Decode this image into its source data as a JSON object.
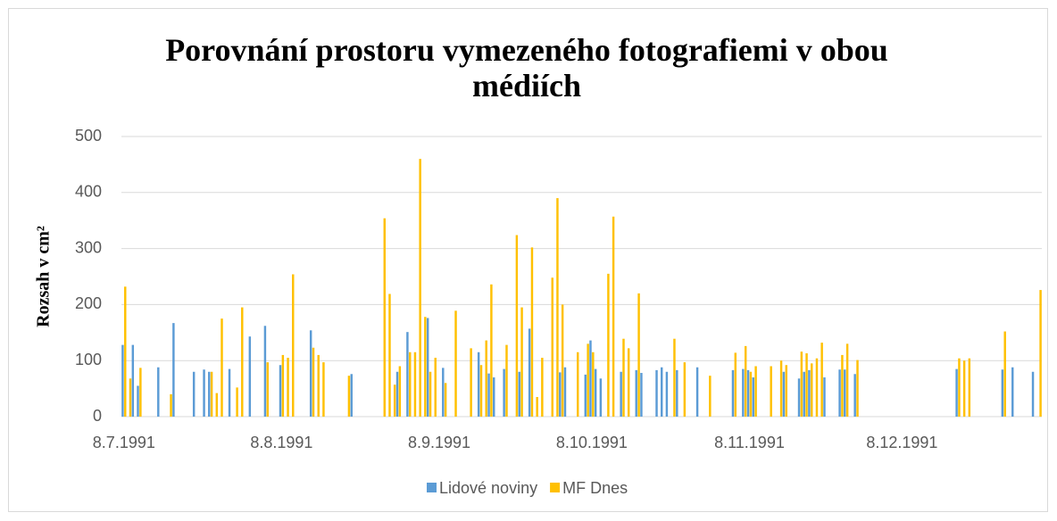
{
  "chart_data": {
    "type": "bar",
    "title": "Porovnání prostoru vymezeného fotografiemi v obou médiích",
    "y_label": "Rozsah v cm²",
    "ylim": [
      0,
      500
    ],
    "yticks": [
      0,
      100,
      200,
      300,
      400,
      500
    ],
    "xlim": [
      "1991-07-08",
      "1992-01-04"
    ],
    "xticks": [
      {
        "value": "1991-07-08",
        "label": "8.7.1991"
      },
      {
        "value": "1991-08-08",
        "label": "8.8.1991"
      },
      {
        "value": "1991-09-08",
        "label": "8.9.1991"
      },
      {
        "value": "1991-10-08",
        "label": "8.10.1991"
      },
      {
        "value": "1991-11-08",
        "label": "8.11.1991"
      },
      {
        "value": "1991-12-08",
        "label": "8.12.1991"
      }
    ],
    "grid": true,
    "legend": "bottom",
    "x": [
      "1991-07-08",
      "1991-07-09",
      "1991-07-10",
      "1991-07-11",
      "1991-07-15",
      "1991-07-17",
      "1991-07-18",
      "1991-07-22",
      "1991-07-24",
      "1991-07-25",
      "1991-07-26",
      "1991-07-27",
      "1991-07-29",
      "1991-07-30",
      "1991-07-31",
      "1991-08-02",
      "1991-08-05",
      "1991-08-08",
      "1991-08-09",
      "1991-08-10",
      "1991-08-14",
      "1991-08-15",
      "1991-08-16",
      "1991-08-21",
      "1991-08-22",
      "1991-08-28",
      "1991-08-29",
      "1991-08-30",
      "1991-08-31",
      "1991-09-02",
      "1991-09-03",
      "1991-09-04",
      "1991-09-05",
      "1991-09-06",
      "1991-09-07",
      "1991-09-09",
      "1991-09-11",
      "1991-09-14",
      "1991-09-16",
      "1991-09-17",
      "1991-09-18",
      "1991-09-19",
      "1991-09-21",
      "1991-09-23",
      "1991-09-24",
      "1991-09-26",
      "1991-09-27",
      "1991-09-28",
      "1991-09-30",
      "1991-10-01",
      "1991-10-02",
      "1991-10-03",
      "1991-10-05",
      "1991-10-07",
      "1991-10-08",
      "1991-10-09",
      "1991-10-10",
      "1991-10-11",
      "1991-10-12",
      "1991-10-14",
      "1991-10-15",
      "1991-10-17",
      "1991-10-18",
      "1991-10-21",
      "1991-10-22",
      "1991-10-23",
      "1991-10-24",
      "1991-10-25",
      "1991-10-26",
      "1991-10-29",
      "1991-10-31",
      "1991-11-05",
      "1991-11-07",
      "1991-11-08",
      "1991-11-09",
      "1991-11-12",
      "1991-11-14",
      "1991-11-15",
      "1991-11-18",
      "1991-11-19",
      "1991-11-20",
      "1991-11-21",
      "1991-11-22",
      "1991-11-23",
      "1991-11-26",
      "1991-11-27",
      "1991-11-29",
      "1991-12-19",
      "1991-12-20",
      "1991-12-21",
      "1991-12-28",
      "1991-12-30",
      "1992-01-03",
      "1992-01-04"
    ],
    "series": [
      {
        "name": "Lidové noviny",
        "color": "#5b9bd5",
        "values": [
          128,
          null,
          128,
          55,
          88,
          null,
          167,
          80,
          84,
          80,
          null,
          null,
          85,
          null,
          null,
          143,
          162,
          92,
          null,
          null,
          154,
          null,
          null,
          null,
          76,
          null,
          null,
          null,
          80,
          151,
          null,
          null,
          null,
          176,
          null,
          87,
          null,
          null,
          115,
          null,
          77,
          70,
          85,
          null,
          80,
          157,
          null,
          null,
          null,
          null,
          79,
          88,
          null,
          75,
          136,
          85,
          68,
          null,
          null,
          80,
          null,
          83,
          78,
          83,
          88,
          80,
          null,
          83,
          null,
          88,
          null,
          83,
          85,
          83,
          70,
          null,
          null,
          80,
          68,
          80,
          83,
          null,
          null,
          70,
          84,
          84,
          76,
          85,
          null,
          null,
          84,
          88,
          80,
          null
        ]
      },
      {
        "name": "MF Dnes",
        "color": "#ffc000",
        "values": [
          232,
          68,
          null,
          87,
          null,
          40,
          null,
          null,
          null,
          80,
          42,
          175,
          null,
          52,
          195,
          null,
          97,
          110,
          105,
          254,
          123,
          110,
          97,
          73,
          null,
          354,
          219,
          57,
          90,
          115,
          115,
          460,
          178,
          80,
          105,
          60,
          189,
          122,
          92,
          136,
          236,
          null,
          128,
          324,
          195,
          302,
          35,
          105,
          248,
          390,
          200,
          null,
          115,
          130,
          115,
          null,
          null,
          255,
          357,
          139,
          122,
          220,
          null,
          null,
          null,
          null,
          139,
          null,
          97,
          null,
          73,
          114,
          126,
          80,
          90,
          90,
          100,
          92,
          116,
          113,
          95,
          104,
          132,
          null,
          110,
          130,
          101,
          104,
          100,
          104,
          152,
          null,
          null,
          226
        ]
      }
    ]
  }
}
